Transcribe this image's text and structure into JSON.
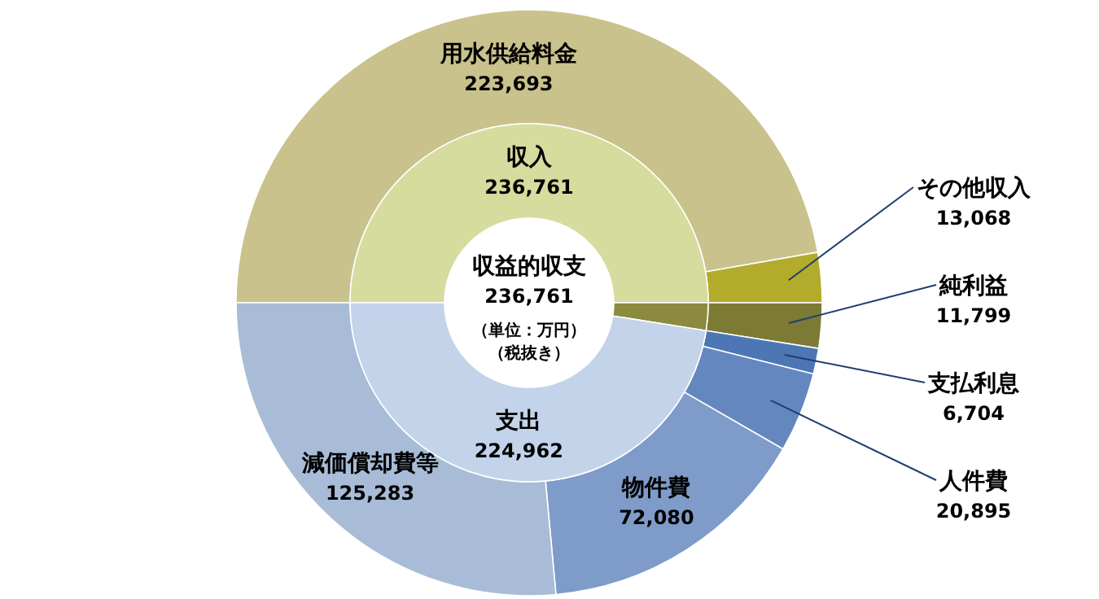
{
  "chart_data": [
    {
      "type": "donut",
      "title": "収益的収支",
      "annotations": [
        "236,761",
        "（単位：万円）",
        "（税抜き）"
      ],
      "categories": [
        "収入",
        null,
        "支出"
      ],
      "values": [
        236761,
        11799,
        224962
      ],
      "colors": [
        "#d5dc9e",
        "#8c8a3e",
        "#c3d3ea"
      ],
      "value_labels": [
        "236,761",
        null,
        "224,962"
      ]
    },
    {
      "type": "donut",
      "categories": [
        "用水供給料金",
        "その他収入",
        "純利益",
        "支払利息",
        "人件費",
        "物件費",
        "減価償却費等"
      ],
      "values": [
        223693,
        13068,
        11799,
        6704,
        20895,
        72080,
        125283
      ],
      "colors": [
        "#c9c28c",
        "#b3ab2c",
        "#7c7a34",
        "#4d76b4",
        "#6487c0",
        "#7e9bc9",
        "#a8bcd8"
      ],
      "value_labels": [
        "223,693",
        "13,068",
        "11,799",
        "6,704",
        "20,895",
        "72,080",
        "125,283"
      ]
    }
  ]
}
